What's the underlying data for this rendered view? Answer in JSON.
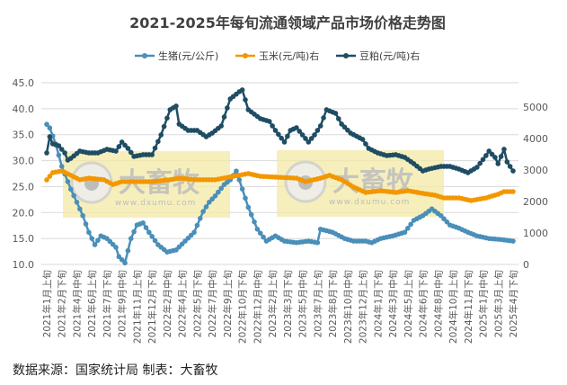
{
  "chart_data": {
    "type": "line",
    "title": "2021-2025年每旬流通领域产品市场价格走势图",
    "source": "数据来源：国家统计局  制表：大畜牧",
    "watermark": {
      "brand": "大畜牧",
      "url": "www.dxumu.com"
    },
    "legend_position": "top",
    "grid": true,
    "y_left": {
      "ylim": [
        10,
        45
      ],
      "ticks": [
        "10.0",
        "15.0",
        "20.0",
        "25.0",
        "30.0",
        "35.0",
        "40.0",
        "45.0"
      ]
    },
    "y_right": {
      "ylim": [
        0,
        5770
      ],
      "ticks": [
        "0",
        "1000",
        "2000",
        "3000",
        "4000",
        "5000"
      ]
    },
    "x_range": [
      "2021年1月上旬",
      "2025年4月下旬"
    ],
    "tick_labels": [
      "2021年1月上旬",
      "2021年2月下旬",
      "2021年4月中旬",
      "2021年6月上旬",
      "2021年7月下旬",
      "2021年9月中旬",
      "2021年11月上旬",
      "2021年12月下旬",
      "2022年2月中旬",
      "2022年4月上旬",
      "2022年5月下旬",
      "2022年7月中旬",
      "2022年9月上旬",
      "2022年10月下旬",
      "2022年12月中旬",
      "2023年2月上旬",
      "2023年3月下旬",
      "2023年5月中旬",
      "2023年7月上旬",
      "2023年8月下旬",
      "2023年10月中旬",
      "2023年12月上旬",
      "2024年1月下旬",
      "2024年3月中旬",
      "2024年5月上旬",
      "2024年6月下旬",
      "2024年8月中旬",
      "2024年10月上旬",
      "2024年11月下旬",
      "2025年1月中旬",
      "2025年3月上旬",
      "2025年4月下旬"
    ],
    "series": [
      {
        "name": "生猪(元/公斤)",
        "axis": "left",
        "color": "#4a8fb9",
        "points": [
          [
            "2021年1月上旬",
            37.0
          ],
          [
            "2021年1月中旬",
            36.3
          ],
          [
            "2021年2月上旬",
            33.2
          ],
          [
            "2021年2月下旬",
            28.9
          ],
          [
            "2021年3月下旬",
            24.5
          ],
          [
            "2021年4月中旬",
            22.0
          ],
          [
            "2021年5月上旬",
            19.4
          ],
          [
            "2021年5月下旬",
            16.2
          ],
          [
            "2021年6月中旬",
            13.8
          ],
          [
            "2021年7月上旬",
            15.5
          ],
          [
            "2021年7月下旬",
            15.0
          ],
          [
            "2021年8月下旬",
            13.3
          ],
          [
            "2021年9月上旬",
            11.5
          ],
          [
            "2021年9月下旬",
            10.3
          ],
          [
            "2021年10月中旬",
            15.0
          ],
          [
            "2021年11月上旬",
            17.6
          ],
          [
            "2021年11月下旬",
            18.0
          ],
          [
            "2021年12月中旬",
            16.2
          ],
          [
            "2022年1月中旬",
            13.8
          ],
          [
            "2022年2月中旬",
            12.4
          ],
          [
            "2022年3月中旬",
            12.8
          ],
          [
            "2022年4月中旬",
            14.5
          ],
          [
            "2022年5月中旬",
            16.2
          ],
          [
            "2022年6月中旬",
            20.2
          ],
          [
            "2022年7月上旬",
            22.0
          ],
          [
            "2022年7月下旬",
            23.2
          ],
          [
            "2022年8月下旬",
            25.4
          ],
          [
            "2022年9月中旬",
            26.3
          ],
          [
            "2022年10月上旬",
            28.0
          ],
          [
            "2022年10月中旬",
            26.3
          ],
          [
            "2022年11月中旬",
            21.0
          ],
          [
            "2022年12月中旬",
            16.8
          ],
          [
            "2023年1月中旬",
            14.5
          ],
          [
            "2023年2月中旬",
            15.5
          ],
          [
            "2023年3月中旬",
            14.5
          ],
          [
            "2023年4月下旬",
            14.2
          ],
          [
            "2023年6月上旬",
            14.5
          ],
          [
            "2023年7月上旬",
            14.2
          ],
          [
            "2023年7月中旬",
            16.8
          ],
          [
            "2023年8月下旬",
            16.2
          ],
          [
            "2023年10月上旬",
            15.0
          ],
          [
            "2023年11月上旬",
            14.5
          ],
          [
            "2023年12月中旬",
            14.5
          ],
          [
            "2024年1月上旬",
            14.2
          ],
          [
            "2024年2月上旬",
            15.0
          ],
          [
            "2024年3月中旬",
            15.5
          ],
          [
            "2024年4月下旬",
            16.2
          ],
          [
            "2024年5月下旬",
            18.5
          ],
          [
            "2024年6月下旬",
            19.4
          ],
          [
            "2024年7月下旬",
            20.7
          ],
          [
            "2024年8月下旬",
            19.4
          ],
          [
            "2024年9月下旬",
            17.6
          ],
          [
            "2024年10月下旬",
            17.0
          ],
          [
            "2024年11月下旬",
            16.2
          ],
          [
            "2024年12月下旬",
            15.5
          ],
          [
            "2025年2月上旬",
            15.0
          ],
          [
            "2025年3月中旬",
            14.8
          ],
          [
            "2025年4月下旬",
            14.5
          ]
        ]
      },
      {
        "name": "玉米(元/吨)右",
        "axis": "right",
        "color": "#f29700",
        "points": [
          [
            "2021年1月上旬",
            2686
          ],
          [
            "2021年1月下旬",
            2914
          ],
          [
            "2021年2月下旬",
            2970
          ],
          [
            "2021年3月下旬",
            2830
          ],
          [
            "2021年4月下旬",
            2690
          ],
          [
            "2021年5月下旬",
            2740
          ],
          [
            "2021年7月中旬",
            2690
          ],
          [
            "2021年8月中旬",
            2540
          ],
          [
            "2021年9月中旬",
            2630
          ],
          [
            "2021年10月下旬",
            2630
          ],
          [
            "2021年12月下旬",
            2630
          ],
          [
            "2022年2月下旬",
            2690
          ],
          [
            "2022年3月下旬",
            2740
          ],
          [
            "2022年5月下旬",
            2690
          ],
          [
            "2022年7月下旬",
            2690
          ],
          [
            "2022年9月下旬",
            2800
          ],
          [
            "2022年11月中旬",
            2886
          ],
          [
            "2022年12月下旬",
            2800
          ],
          [
            "2023年2月下旬",
            2770
          ],
          [
            "2023年4月下旬",
            2740
          ],
          [
            "2023年5月下旬",
            2630
          ],
          [
            "2023年7月中旬",
            2740
          ],
          [
            "2023年8月中旬",
            2830
          ],
          [
            "2023年9月下旬",
            2690
          ],
          [
            "2023年11月上旬",
            2457
          ],
          [
            "2023年12月中旬",
            2286
          ],
          [
            "2024年2月上旬",
            2343
          ],
          [
            "2024年3月下旬",
            2286
          ],
          [
            "2024年5月上旬",
            2343
          ],
          [
            "2024年6月下旬",
            2257
          ],
          [
            "2024年8月上旬",
            2200
          ],
          [
            "2024年9月上旬",
            2114
          ],
          [
            "2024年10月下旬",
            2114
          ],
          [
            "2024年12月上旬",
            2029
          ],
          [
            "2025年1月下旬",
            2114
          ],
          [
            "2025年3月上旬",
            2229
          ],
          [
            "2025年3月下旬",
            2314
          ],
          [
            "2025年4月下旬",
            2314
          ]
        ]
      },
      {
        "name": "豆粕(元/吨)右",
        "axis": "right",
        "color": "#1f4d63",
        "points": [
          [
            "2021年1月上旬",
            3543
          ],
          [
            "2021年1月中旬",
            4057
          ],
          [
            "2021年1月下旬",
            3830
          ],
          [
            "2021年2月中旬",
            3770
          ],
          [
            "2021年3月上旬",
            3543
          ],
          [
            "2021年3月中旬",
            3314
          ],
          [
            "2021年3月下旬",
            3370
          ],
          [
            "2021年4月下旬",
            3600
          ],
          [
            "2021年5月下旬",
            3543
          ],
          [
            "2021年6月下旬",
            3543
          ],
          [
            "2021年7月下旬",
            3657
          ],
          [
            "2021年8月下旬",
            3600
          ],
          [
            "2021年9月中旬",
            3886
          ],
          [
            "2021年10月上旬",
            3686
          ],
          [
            "2021年10月下旬",
            3430
          ],
          [
            "2021年11月下旬",
            3486
          ],
          [
            "2021年12月下旬",
            3486
          ],
          [
            "2022年1月下旬",
            4114
          ],
          [
            "2022年2月下旬",
            4914
          ],
          [
            "2022年3月中旬",
            5030
          ],
          [
            "2022年3月下旬",
            4457
          ],
          [
            "2022年4月下旬",
            4257
          ],
          [
            "2022年5月下旬",
            4257
          ],
          [
            "2022年6月下旬",
            4057
          ],
          [
            "2022年7月中旬",
            4171
          ],
          [
            "2022年8月中旬",
            4400
          ],
          [
            "2022年9月中旬",
            5257
          ],
          [
            "2022年10月中旬",
            5486
          ],
          [
            "2022年10月下旬",
            5543
          ],
          [
            "2022年11月中旬",
            4914
          ],
          [
            "2022年12月下旬",
            4630
          ],
          [
            "2023年1月下旬",
            4543
          ],
          [
            "2023年2月中旬",
            4257
          ],
          [
            "2023年3月中旬",
            3886
          ],
          [
            "2023年4月上旬",
            4257
          ],
          [
            "2023年4月下旬",
            4343
          ],
          [
            "2023年5月中旬",
            4114
          ],
          [
            "2023年6月上旬",
            3886
          ],
          [
            "2023年6月下旬",
            4114
          ],
          [
            "2023年7月中旬",
            4400
          ],
          [
            "2023年8月上旬",
            4914
          ],
          [
            "2023年9月上旬",
            4800
          ],
          [
            "2023年9月下旬",
            4457
          ],
          [
            "2023年10月下旬",
            4171
          ],
          [
            "2023年12月上旬",
            3971
          ],
          [
            "2023年12月下旬",
            3686
          ],
          [
            "2024年1月下旬",
            3543
          ],
          [
            "2024年2月下旬",
            3457
          ],
          [
            "2024年3月下旬",
            3486
          ],
          [
            "2024年4月下旬",
            3400
          ],
          [
            "2024年5月下旬",
            3200
          ],
          [
            "2024年6月下旬",
            2970
          ],
          [
            "2024年7月中旬",
            3030
          ],
          [
            "2024年8月下旬",
            3114
          ],
          [
            "2024年9月下旬",
            3114
          ],
          [
            "2024年10月下旬",
            3030
          ],
          [
            "2024年11月下旬",
            2914
          ],
          [
            "2024年12月下旬",
            3086
          ],
          [
            "2025年1月下旬",
            3457
          ],
          [
            "2025年2月上旬",
            3600
          ],
          [
            "2025年2月下旬",
            3400
          ],
          [
            "2025年3月上旬",
            3200
          ],
          [
            "2025年3月下旬",
            3657
          ],
          [
            "2025年4月上旬",
            3257
          ],
          [
            "2025年4月下旬",
            2970
          ]
        ]
      }
    ]
  }
}
